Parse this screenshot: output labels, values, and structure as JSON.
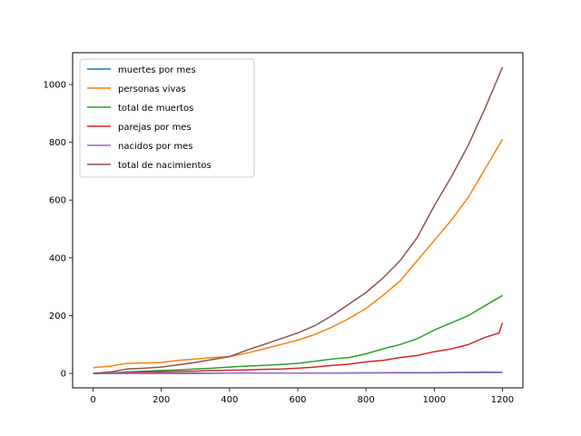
{
  "chart_data": {
    "type": "line",
    "title": "",
    "xlabel": "",
    "ylabel": "",
    "xlim": [
      -60,
      1260
    ],
    "ylim": [
      -50,
      1110
    ],
    "xticks": [
      0,
      200,
      400,
      600,
      800,
      1000,
      1200
    ],
    "yticks": [
      0,
      200,
      400,
      600,
      800,
      1000
    ],
    "grid": false,
    "legend_position": "top-left",
    "series": [
      {
        "name": "muertes por mes",
        "color": "#1f77b4",
        "x": [
          0,
          100,
          200,
          300,
          400,
          500,
          600,
          700,
          800,
          900,
          1000,
          1100,
          1200
        ],
        "y": [
          0,
          0,
          0,
          0,
          1,
          1,
          1,
          1,
          2,
          2,
          2,
          3,
          3
        ]
      },
      {
        "name": "personas vivas",
        "color": "#ff7f0e",
        "x": [
          0,
          50,
          100,
          150,
          200,
          250,
          300,
          350,
          400,
          450,
          500,
          550,
          600,
          650,
          700,
          750,
          800,
          850,
          900,
          950,
          1000,
          1050,
          1100,
          1150,
          1200
        ],
        "y": [
          20,
          25,
          35,
          36,
          38,
          45,
          50,
          55,
          58,
          70,
          85,
          100,
          115,
          135,
          160,
          190,
          225,
          270,
          320,
          390,
          460,
          530,
          610,
          710,
          810
        ]
      },
      {
        "name": "total de muertos",
        "color": "#2ca02c",
        "x": [
          0,
          50,
          100,
          150,
          200,
          250,
          300,
          350,
          400,
          450,
          500,
          550,
          600,
          650,
          700,
          750,
          800,
          850,
          900,
          950,
          1000,
          1050,
          1100,
          1150,
          1200
        ],
        "y": [
          0,
          2,
          5,
          8,
          10,
          12,
          15,
          18,
          22,
          25,
          28,
          31,
          35,
          42,
          50,
          55,
          68,
          85,
          100,
          120,
          150,
          175,
          200,
          235,
          270
        ]
      },
      {
        "name": "parejas por mes",
        "color": "#d62728",
        "x": [
          0,
          50,
          100,
          150,
          200,
          250,
          300,
          350,
          400,
          450,
          500,
          550,
          600,
          650,
          700,
          750,
          800,
          850,
          900,
          950,
          1000,
          1050,
          1100,
          1150,
          1190,
          1200
        ],
        "y": [
          0,
          1,
          3,
          5,
          6,
          7,
          8,
          10,
          11,
          12,
          14,
          15,
          18,
          22,
          28,
          32,
          40,
          45,
          55,
          62,
          75,
          85,
          100,
          125,
          140,
          175
        ]
      },
      {
        "name": "nacidos por mes",
        "color": "#9467bd",
        "x": [
          0,
          100,
          200,
          300,
          400,
          500,
          600,
          700,
          800,
          900,
          1000,
          1100,
          1150,
          1200
        ],
        "y": [
          0,
          1,
          1,
          1,
          1,
          1,
          1,
          1,
          2,
          3,
          3,
          4,
          5,
          4
        ]
      },
      {
        "name": "total de nacimientos",
        "color": "#8c564b",
        "x": [
          0,
          50,
          100,
          150,
          200,
          250,
          300,
          350,
          400,
          450,
          500,
          550,
          600,
          650,
          700,
          750,
          800,
          850,
          900,
          950,
          1000,
          1050,
          1100,
          1150,
          1200
        ],
        "y": [
          0,
          5,
          15,
          18,
          22,
          30,
          38,
          48,
          58,
          80,
          100,
          120,
          140,
          165,
          200,
          240,
          280,
          330,
          390,
          470,
          580,
          680,
          790,
          920,
          1060
        ]
      }
    ]
  }
}
